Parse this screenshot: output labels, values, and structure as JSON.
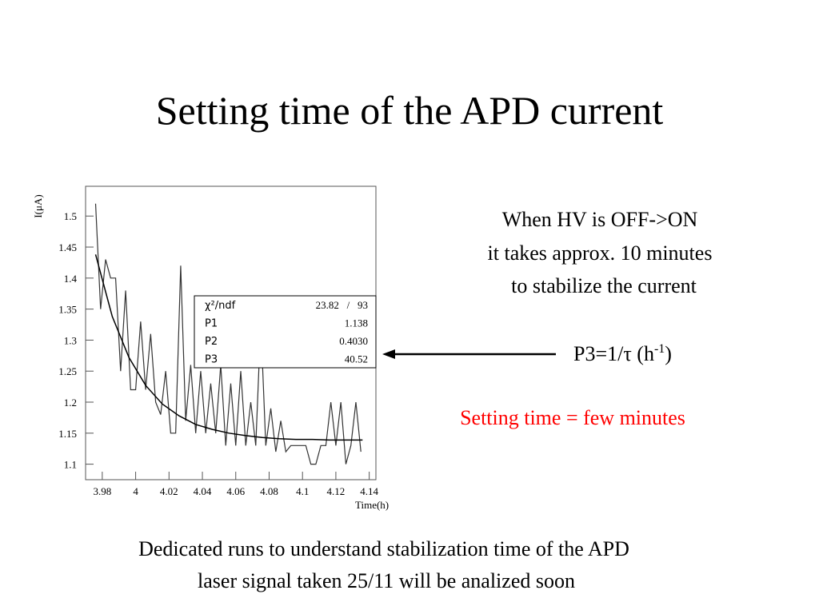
{
  "slide": {
    "title": "Setting time of the APD current",
    "note_lines": [
      "When HV is OFF->ON",
      "it takes approx. 10 minutes",
      "to stabilize the current"
    ],
    "param_parts": [
      "P3=1/τ (h",
      "-1",
      ")"
    ],
    "conclusion": "Setting time = few minutes",
    "footer_lines": [
      "Dedicated runs to understand stabilization time of the APD",
      "laser signal taken 25/11 will be analized soon"
    ]
  },
  "chart_data": {
    "type": "line",
    "x_label": "Time(h)",
    "y_label": "I(μA)",
    "xlim": [
      3.97,
      4.144
    ],
    "ylim": [
      1.075,
      1.548
    ],
    "xticks": [
      3.98,
      4,
      4.02,
      4.04,
      4.06,
      4.08,
      4.1,
      4.12,
      4.14
    ],
    "yticks": [
      1.1,
      1.15,
      1.2,
      1.25,
      1.3,
      1.35,
      1.4,
      1.45,
      1.5
    ],
    "series": [
      {
        "color": "#333333",
        "x": [
          3.976,
          3.979,
          3.982,
          3.985,
          3.988,
          3.991,
          3.994,
          3.997,
          4.0,
          4.003,
          4.006,
          4.009,
          4.012,
          4.015,
          4.018,
          4.021,
          4.024,
          4.027,
          4.03,
          4.033,
          4.036,
          4.039,
          4.042,
          4.045,
          4.048,
          4.051,
          4.054,
          4.057,
          4.06,
          4.063,
          4.066,
          4.069,
          4.072,
          4.075,
          4.078,
          4.081,
          4.084,
          4.087,
          4.09,
          4.093,
          4.096,
          4.099,
          4.102,
          4.105,
          4.108,
          4.111,
          4.114,
          4.117,
          4.12,
          4.123,
          4.126,
          4.129,
          4.132,
          4.135
        ],
        "values": [
          1.52,
          1.35,
          1.43,
          1.4,
          1.4,
          1.25,
          1.38,
          1.22,
          1.22,
          1.33,
          1.22,
          1.31,
          1.2,
          1.18,
          1.25,
          1.15,
          1.15,
          1.42,
          1.17,
          1.26,
          1.15,
          1.25,
          1.15,
          1.23,
          1.15,
          1.26,
          1.13,
          1.23,
          1.13,
          1.25,
          1.13,
          1.2,
          1.13,
          1.33,
          1.13,
          1.19,
          1.12,
          1.17,
          1.12,
          1.13,
          1.13,
          1.13,
          1.13,
          1.1,
          1.1,
          1.13,
          1.13,
          1.2,
          1.13,
          1.2,
          1.1,
          1.13,
          1.2,
          1.12
        ]
      },
      {
        "color": "#000000",
        "x": [
          3.976,
          3.986,
          3.996,
          4.006,
          4.016,
          4.026,
          4.036,
          4.046,
          4.056,
          4.066,
          4.076,
          4.086,
          4.096,
          4.106,
          4.116,
          4.126,
          4.136
        ],
        "values": [
          1.438,
          1.338,
          1.272,
          1.227,
          1.197,
          1.178,
          1.164,
          1.156,
          1.15,
          1.146,
          1.143,
          1.141,
          1.14,
          1.14,
          1.139,
          1.139,
          1.139
        ]
      }
    ],
    "stats": [
      {
        "label": "χ²/ndf",
        "value": "23.82   /   93"
      },
      {
        "label": "P1",
        "value": "1.138"
      },
      {
        "label": "P2",
        "value": "0.4030"
      },
      {
        "label": "P3",
        "value": "40.52"
      }
    ]
  }
}
